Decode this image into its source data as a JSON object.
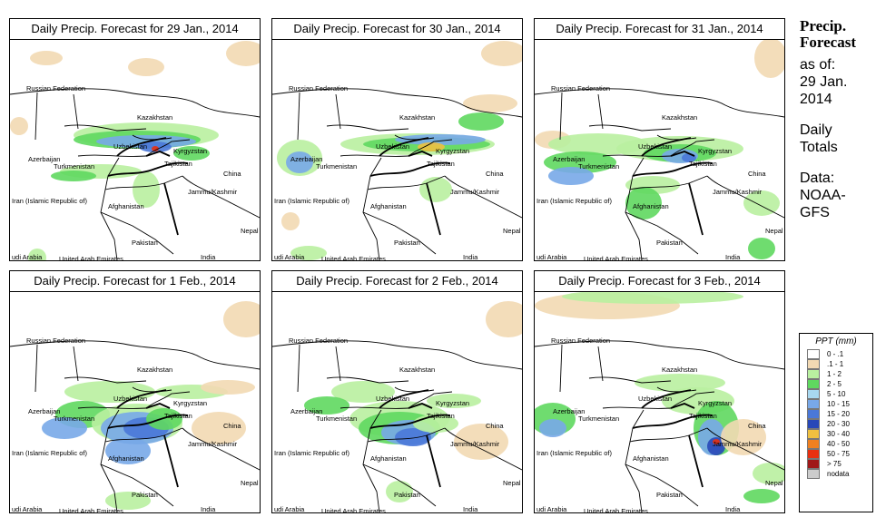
{
  "panels": [
    {
      "title": "Daily Precip. Forecast for  29 Jan., 2014"
    },
    {
      "title": "Daily Precip. Forecast for  30 Jan., 2014"
    },
    {
      "title": "Daily Precip. Forecast for  31 Jan., 2014"
    },
    {
      "title": "Daily Precip. Forecast for  1 Feb., 2014"
    },
    {
      "title": "Daily Precip. Forecast for  2 Feb., 2014"
    },
    {
      "title": "Daily Precip. Forecast for  3 Feb., 2014"
    }
  ],
  "map_labels": {
    "russia": "Russian Federation",
    "kazakhstan": "Kazakhstan",
    "uzbekistan": "Uzbekistan",
    "kyrgyzstan": "Kyrgyzstan",
    "tajikistan": "Tajikistan",
    "azerbaijan": "Azerbaijan",
    "turkmenistan": "Turkmenistan",
    "china": "China",
    "jammu": "Jammu/Kashmir",
    "iran": "Iran (Islamic Republic of)",
    "afghanistan": "Afghanistan",
    "nepal": "Nepal",
    "pakistan": "Pakistan",
    "saudi": "udi Arabia",
    "uae": "United Arab Emirates",
    "india": "India"
  },
  "sidebar": {
    "heading_line1": "Precip.",
    "heading_line2": "Forecast",
    "as_of_label": "as of:",
    "date_line1": "29 Jan.",
    "date_line2": "2014",
    "totals_line1": "Daily",
    "totals_line2": "Totals",
    "data_label": "Data:",
    "source_line1": "NOAA-",
    "source_line2": "GFS"
  },
  "legend": {
    "title": "PPT (mm)",
    "items": [
      {
        "label": "0 - .1",
        "color": "#ffffff"
      },
      {
        "label": ".1 - 1",
        "color": "#f2d9b3"
      },
      {
        "label": "1 - 2",
        "color": "#b9f0a0"
      },
      {
        "label": "2 - 5",
        "color": "#5fd85f"
      },
      {
        "label": "5 - 10",
        "color": "#a8d8f0"
      },
      {
        "label": "10 - 15",
        "color": "#78a8e8"
      },
      {
        "label": "15 - 20",
        "color": "#4a78d8"
      },
      {
        "label": "20 - 30",
        "color": "#2848b8"
      },
      {
        "label": "30 - 40",
        "color": "#f0c040"
      },
      {
        "label": "40 - 50",
        "color": "#f08020"
      },
      {
        "label": "50 - 75",
        "color": "#e83010"
      },
      {
        "label": "> 75",
        "color": "#a01818"
      },
      {
        "label": "nodata",
        "color": "#cccccc"
      }
    ]
  }
}
